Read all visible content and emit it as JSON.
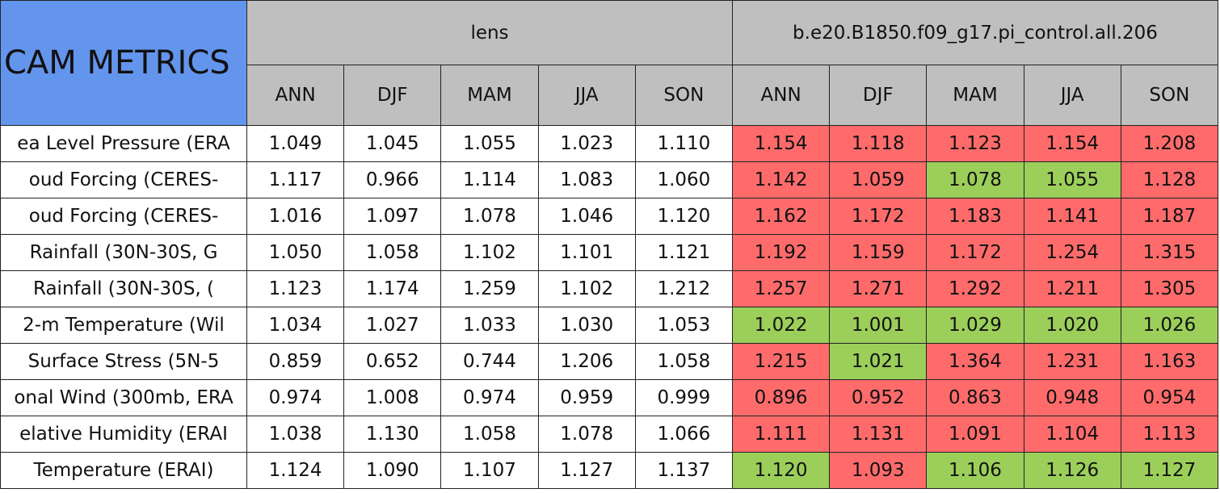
{
  "table": {
    "corner": "CAM METRICS",
    "groups": [
      "lens",
      "b.e20.B1850.f09_g17.pi_control.all.206"
    ],
    "seasons": [
      "ANN",
      "DJF",
      "MAM",
      "JJA",
      "SON"
    ],
    "header_color": "#bfbfbf",
    "corner_color": "#6495ed",
    "colors": {
      "red": "#ff6b6b",
      "green": "#9bcf5a"
    },
    "rows": [
      {
        "name": "ea Level Pressure (ERA",
        "lens": [
          "1.049",
          "1.045",
          "1.055",
          "1.023",
          "1.110"
        ],
        "ctrl": [
          "1.154",
          "1.118",
          "1.123",
          "1.154",
          "1.208"
        ],
        "ctrl_colors": [
          "red",
          "red",
          "red",
          "red",
          "red"
        ]
      },
      {
        "name": "oud Forcing (CERES-",
        "lens": [
          "1.117",
          "0.966",
          "1.114",
          "1.083",
          "1.060"
        ],
        "ctrl": [
          "1.142",
          "1.059",
          "1.078",
          "1.055",
          "1.128"
        ],
        "ctrl_colors": [
          "red",
          "red",
          "green",
          "green",
          "red"
        ]
      },
      {
        "name": "oud Forcing (CERES-",
        "lens": [
          "1.016",
          "1.097",
          "1.078",
          "1.046",
          "1.120"
        ],
        "ctrl": [
          "1.162",
          "1.172",
          "1.183",
          "1.141",
          "1.187"
        ],
        "ctrl_colors": [
          "red",
          "red",
          "red",
          "red",
          "red"
        ]
      },
      {
        "name": "Rainfall (30N-30S, G",
        "lens": [
          "1.050",
          "1.058",
          "1.102",
          "1.101",
          "1.121"
        ],
        "ctrl": [
          "1.192",
          "1.159",
          "1.172",
          "1.254",
          "1.315"
        ],
        "ctrl_colors": [
          "red",
          "red",
          "red",
          "red",
          "red"
        ]
      },
      {
        "name": "Rainfall (30N-30S, (",
        "lens": [
          "1.123",
          "1.174",
          "1.259",
          "1.102",
          "1.212"
        ],
        "ctrl": [
          "1.257",
          "1.271",
          "1.292",
          "1.211",
          "1.305"
        ],
        "ctrl_colors": [
          "red",
          "red",
          "red",
          "red",
          "red"
        ]
      },
      {
        "name": "2-m Temperature (Wil",
        "lens": [
          "1.034",
          "1.027",
          "1.033",
          "1.030",
          "1.053"
        ],
        "ctrl": [
          "1.022",
          "1.001",
          "1.029",
          "1.020",
          "1.026"
        ],
        "ctrl_colors": [
          "green",
          "green",
          "green",
          "green",
          "green"
        ]
      },
      {
        "name": "Surface Stress (5N-5",
        "lens": [
          "0.859",
          "0.652",
          "0.744",
          "1.206",
          "1.058"
        ],
        "ctrl": [
          "1.215",
          "1.021",
          "1.364",
          "1.231",
          "1.163"
        ],
        "ctrl_colors": [
          "red",
          "green",
          "red",
          "red",
          "red"
        ]
      },
      {
        "name": "onal Wind (300mb, ERA",
        "lens": [
          "0.974",
          "1.008",
          "0.974",
          "0.959",
          "0.999"
        ],
        "ctrl": [
          "0.896",
          "0.952",
          "0.863",
          "0.948",
          "0.954"
        ],
        "ctrl_colors": [
          "red",
          "red",
          "red",
          "red",
          "red"
        ]
      },
      {
        "name": "elative Humidity (ERAI",
        "lens": [
          "1.038",
          "1.130",
          "1.058",
          "1.078",
          "1.066"
        ],
        "ctrl": [
          "1.111",
          "1.131",
          "1.091",
          "1.104",
          "1.113"
        ],
        "ctrl_colors": [
          "red",
          "red",
          "red",
          "red",
          "red"
        ]
      },
      {
        "name": "Temperature (ERAI)",
        "lens": [
          "1.124",
          "1.090",
          "1.107",
          "1.127",
          "1.137"
        ],
        "ctrl": [
          "1.120",
          "1.093",
          "1.106",
          "1.126",
          "1.127"
        ],
        "ctrl_colors": [
          "green",
          "red",
          "green",
          "green",
          "green"
        ]
      }
    ]
  }
}
